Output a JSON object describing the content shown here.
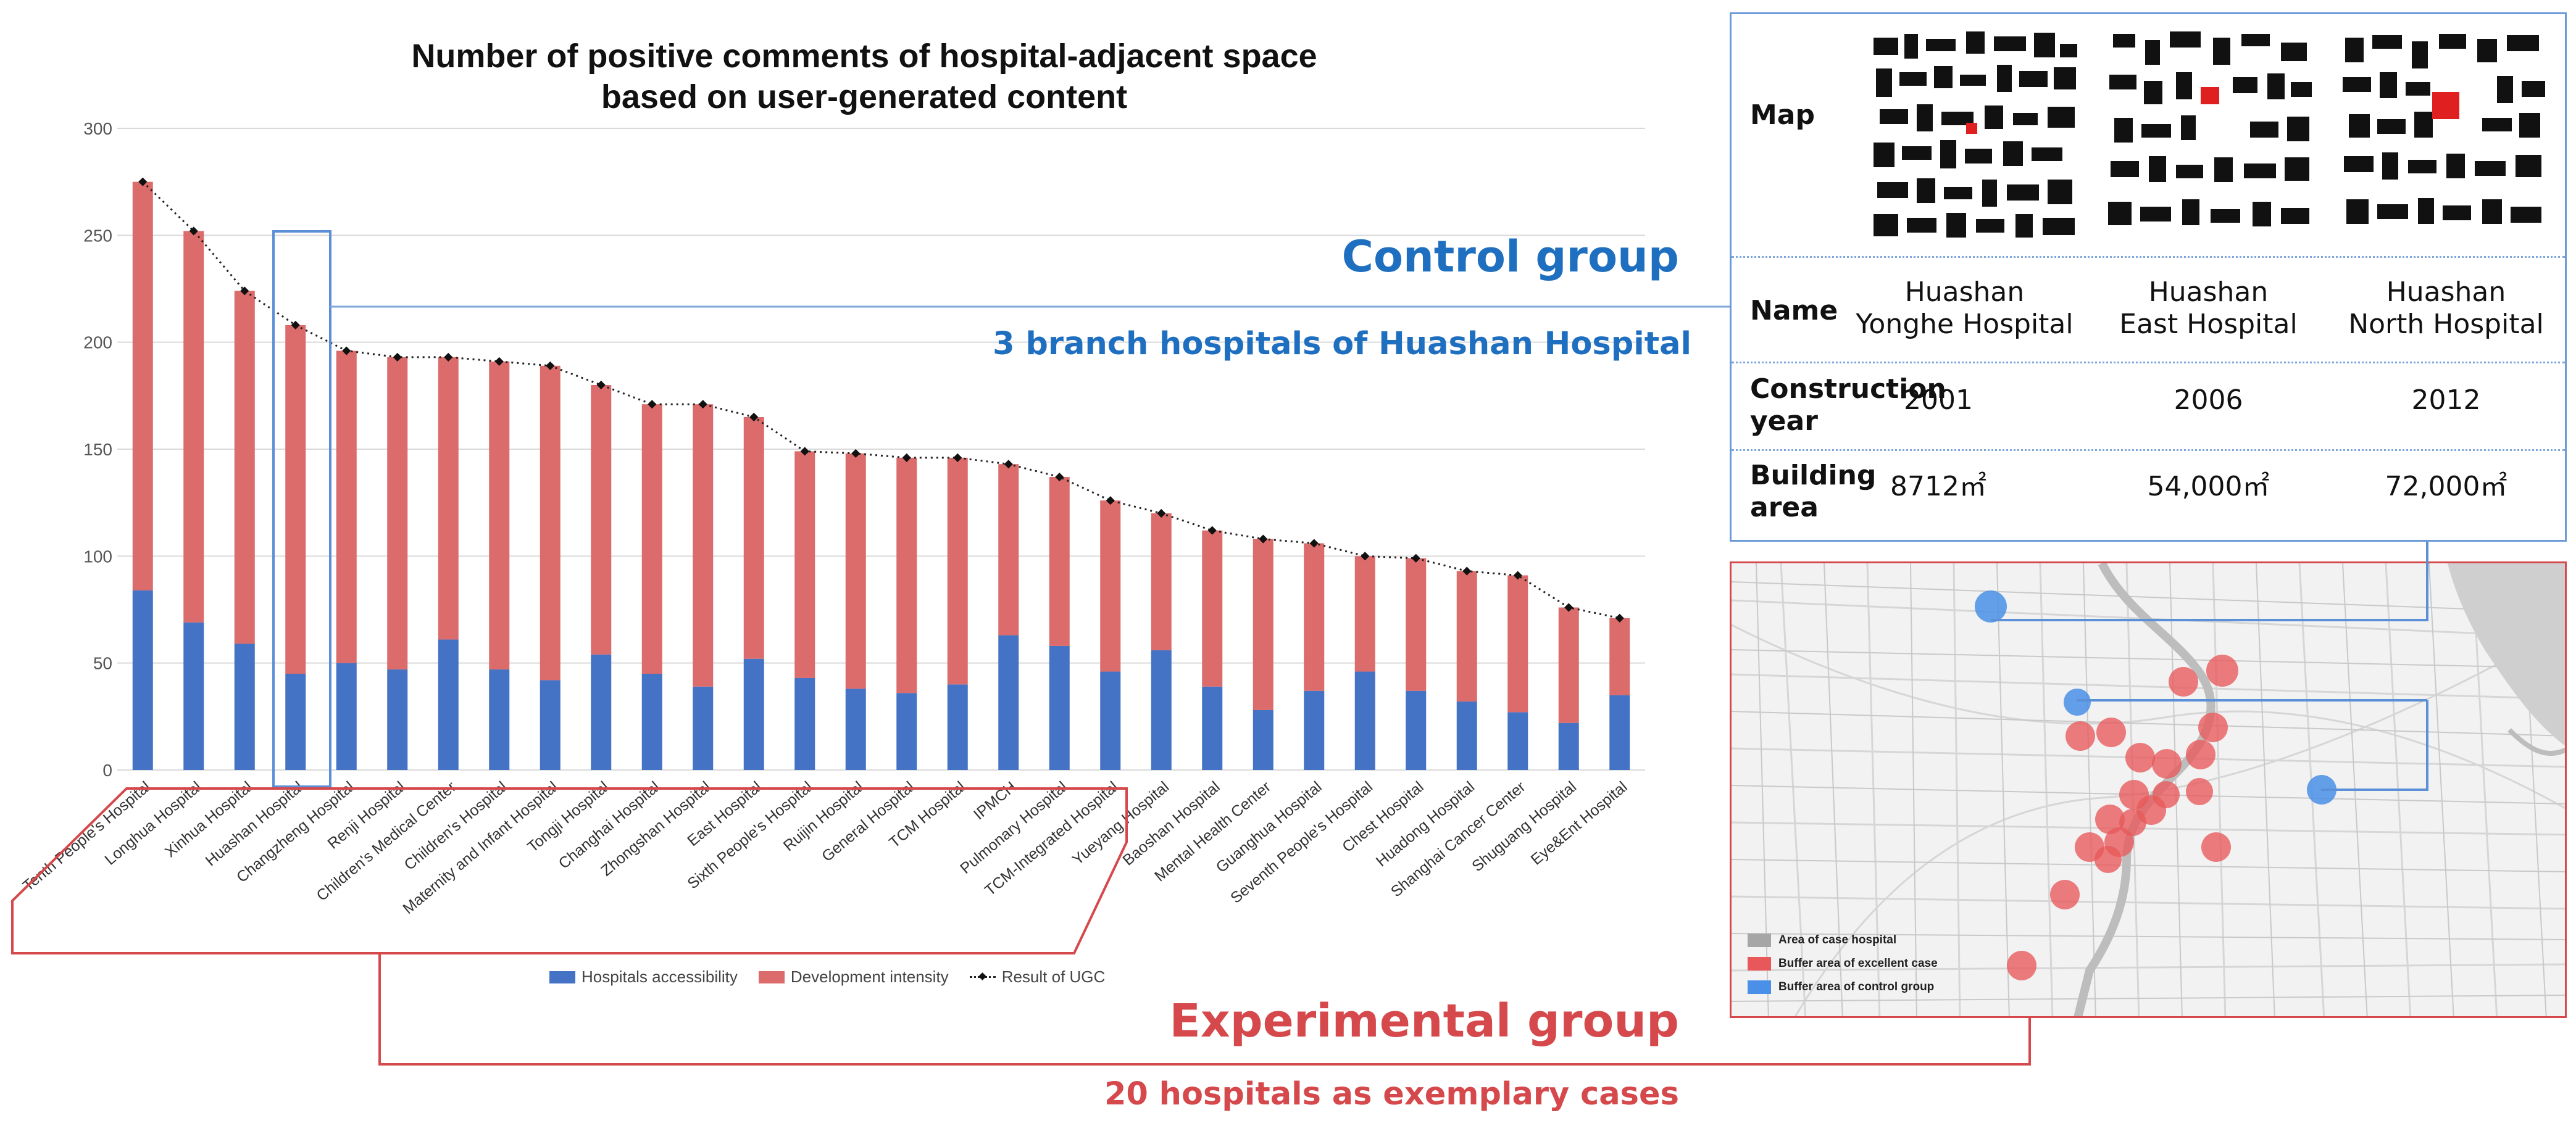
{
  "chart_data": {
    "type": "bar",
    "stacked": true,
    "title": "Number of positive comments of hospital-adjacent space\nbased on user-generated content",
    "title_line1": "Number of positive comments of hospital-adjacent space",
    "title_line2": "based on user-generated content",
    "ylim": [
      0,
      300
    ],
    "yticks": [
      0,
      50,
      100,
      150,
      200,
      250,
      300
    ],
    "grid": true,
    "legend_position": "bottom",
    "categories": [
      "Tenth People's Hospital",
      "Longhua Hospital",
      "Xinhua Hospital",
      "Huashan Hospital",
      "Changzheng Hospital",
      "Renji Hospital",
      "Children's Medical Center",
      "Children's Hospital",
      "Maternity and Infant Hospital",
      "Tongji Hospital",
      "Changhai Hospital",
      "Zhongshan Hospital",
      "East Hospital",
      "Sixth People's Hospital",
      "Ruijin Hospital",
      "General Hospital",
      "TCM Hospital",
      "IPMCH",
      "Pulmonary Hospital",
      "TCM-Integrated Hospital",
      "Yueyang Hospital",
      "Baoshan Hospital",
      "Mental Health Center",
      "Guanghua Hospital",
      "Seventh People's Hospital",
      "Chest Hospital",
      "Huadong Hospital",
      "Shanghai Cancer Center",
      "Shuguang Hospital",
      "Eye&Ent Hospital"
    ],
    "series": [
      {
        "name": "Hospitals accessibility",
        "color": "#4472c4",
        "values": [
          84,
          69,
          59,
          45,
          50,
          47,
          61,
          47,
          42,
          54,
          45,
          39,
          52,
          43,
          38,
          36,
          40,
          63,
          58,
          46,
          56,
          39,
          28,
          37,
          46,
          37,
          32,
          27,
          22,
          35
        ]
      },
      {
        "name": "Development intensity",
        "color": "#dc6b6b",
        "values": [
          191,
          183,
          165,
          163,
          146,
          146,
          132,
          144,
          147,
          126,
          126,
          132,
          113,
          106,
          110,
          110,
          106,
          80,
          79,
          80,
          64,
          73,
          80,
          69,
          54,
          62,
          61,
          64,
          54,
          36
        ]
      },
      {
        "name": "Result of UGC",
        "type": "line",
        "color": "#111111",
        "values": [
          275,
          252,
          224,
          208,
          196,
          193,
          193,
          191,
          189,
          180,
          171,
          171,
          165,
          149,
          148,
          146,
          146,
          143,
          137,
          126,
          120,
          112,
          108,
          106,
          100,
          99,
          93,
          91,
          76,
          71
        ]
      }
    ]
  },
  "groups": {
    "control_title": "Control group",
    "control_subtitle": "3 branch hospitals of Huashan Hospital",
    "experimental_title": "Experimental group",
    "experimental_subtitle": "20 hospitals as exemplary cases"
  },
  "colors": {
    "control": "#1f6fc0",
    "experimental": "#d5494c",
    "blue_bar": "#4472c4",
    "red_bar": "#dc6b6b"
  },
  "info_table": {
    "map_label": "Map",
    "name_label": "Name",
    "construction_label_1": "Construction",
    "construction_label_2": "year",
    "area_label_1": "Building",
    "area_label_2": "area",
    "hospitals": [
      {
        "name_1": "Huashan",
        "name_2": "Yonghe Hospital",
        "year": "2001",
        "area": "8712㎡"
      },
      {
        "name_1": "Huashan",
        "name_2": "East Hospital",
        "year": "2006",
        "area": "54,000㎡"
      },
      {
        "name_1": "Huashan",
        "name_2": "North Hospital",
        "year": "2012",
        "area": "72,000㎡"
      }
    ]
  },
  "map_legend": {
    "case_area": "Area of case hospital",
    "excellent_buffer": "Buffer area of excellent case",
    "control_buffer": "Buffer area of control group"
  }
}
